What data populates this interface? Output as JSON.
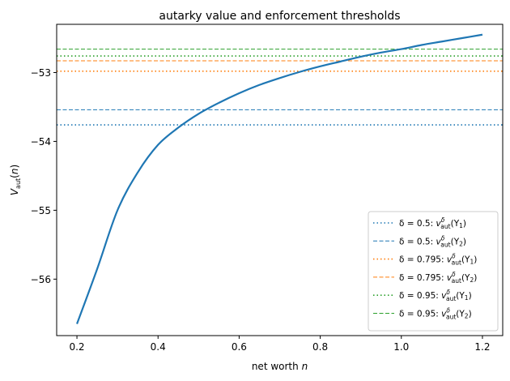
{
  "chart_data": {
    "type": "line",
    "title": "autarky value and enforcement thresholds",
    "xlabel": "net worth n",
    "ylabel": "V_aut(n)",
    "xlim": [
      0.15,
      1.25
    ],
    "ylim": [
      -56.82,
      -52.3
    ],
    "xticks": [
      0.2,
      0.4,
      0.6,
      0.8,
      1.0,
      1.2
    ],
    "yticks": [
      -56,
      -55,
      -54,
      -53
    ],
    "xtick_labels": [
      "0.2",
      "0.4",
      "0.6",
      "0.8",
      "1.0",
      "1.2"
    ],
    "ytick_labels": [
      "−56",
      "−55",
      "−54",
      "−53"
    ],
    "grid": false,
    "legend_position": "lower-right",
    "curve": {
      "color": "#1f77b4",
      "x": [
        0.2,
        0.25,
        0.3,
        0.35,
        0.4,
        0.45,
        0.5,
        0.55,
        0.6,
        0.65,
        0.7,
        0.75,
        0.8,
        0.85,
        0.9,
        0.95,
        1.0,
        1.05,
        1.1,
        1.15,
        1.2
      ],
      "y": [
        -56.65,
        -55.85,
        -55.0,
        -54.45,
        -54.05,
        -53.8,
        -53.6,
        -53.44,
        -53.3,
        -53.18,
        -53.08,
        -52.99,
        -52.91,
        -52.84,
        -52.77,
        -52.71,
        -52.66,
        -52.6,
        -52.55,
        -52.5,
        -52.45
      ]
    },
    "thresholds": [
      {
        "label": "δ = 0.5: v^δ_aut(Y₁)",
        "delta": "δ = 0.5",
        "arg": "(Y",
        "sub": "1",
        "y": -53.76,
        "color": "#1f77b4",
        "style": "dotted"
      },
      {
        "label": "δ = 0.5: v^δ_aut(Y₂)",
        "delta": "δ = 0.5",
        "arg": "(Y",
        "sub": "2",
        "y": -53.54,
        "color": "#1f77b4",
        "style": "dashed"
      },
      {
        "label": "δ = 0.795: v^δ_aut(Y₁)",
        "delta": "δ = 0.795",
        "arg": "(Y",
        "sub": "1",
        "y": -52.98,
        "color": "#ff7f0e",
        "style": "dotted"
      },
      {
        "label": "δ = 0.795: v^δ_aut(Y₂)",
        "delta": "δ = 0.795",
        "arg": "(Y",
        "sub": "2",
        "y": -52.83,
        "color": "#ff7f0e",
        "style": "dashed"
      },
      {
        "label": "δ = 0.95: v^δ_aut(Y₁)",
        "delta": "δ = 0.95",
        "arg": "(Y",
        "sub": "1",
        "y": -52.76,
        "color": "#2ca02c",
        "style": "dotted"
      },
      {
        "label": "δ = 0.95: v^δ_aut(Y₂)",
        "delta": "δ = 0.95",
        "arg": "(Y",
        "sub": "2",
        "y": -52.66,
        "color": "#2ca02c",
        "style": "dashed"
      }
    ]
  }
}
